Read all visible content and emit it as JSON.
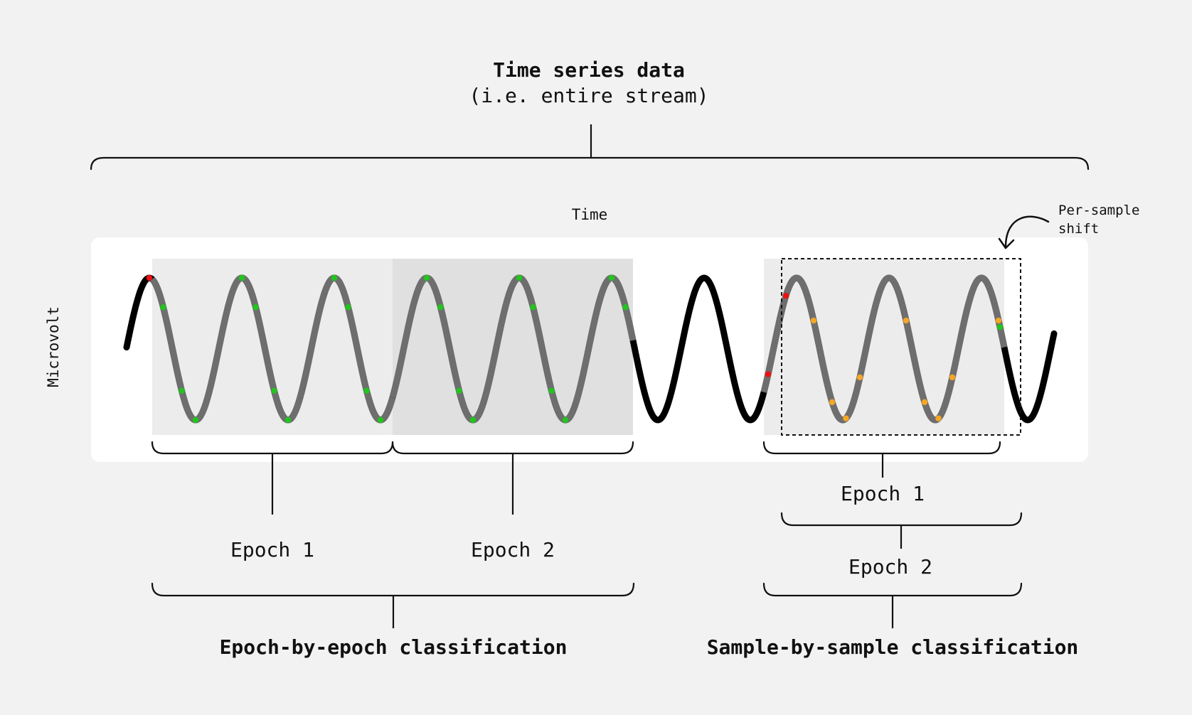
{
  "title": "Time series data",
  "subtitle": "(i.e. entire stream)",
  "axes": {
    "x_label": "Time",
    "y_label": "Microvolt"
  },
  "annotation": {
    "line1": "Per-sample",
    "line2": "shift"
  },
  "epoch_by_epoch": {
    "label": "Epoch-by-epoch classification",
    "epochs": [
      "Epoch 1",
      "Epoch 2"
    ]
  },
  "sample_by_sample": {
    "label": "Sample-by-sample classification",
    "epochs": [
      "Epoch 1",
      "Epoch 2"
    ]
  },
  "colors": {
    "background": "#f2f2f2",
    "plot_panel": "#ffffff",
    "epoch_shade_1": "#ececec",
    "epoch_shade_2": "#e0e0e0",
    "signal": "#000000",
    "signal_in_epoch": "#6e6e6e",
    "sample_green": "#22c41e",
    "sample_red": "#ee1111",
    "sample_orange": "#f5a623"
  }
}
